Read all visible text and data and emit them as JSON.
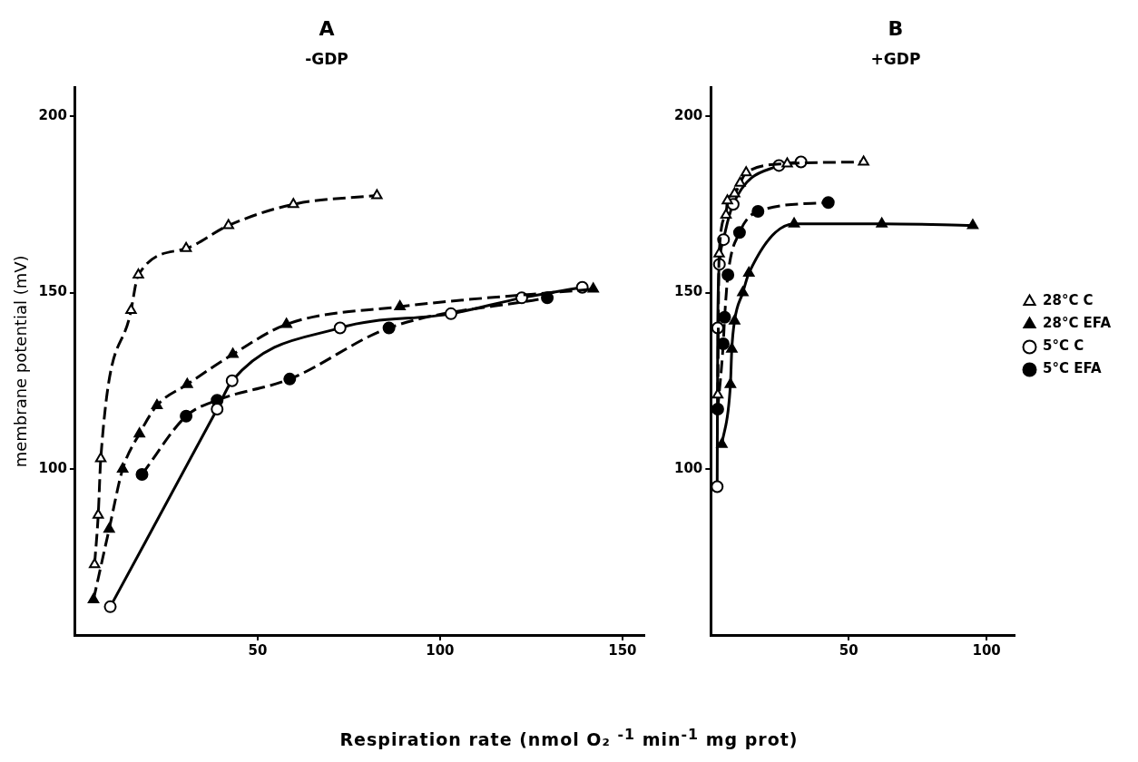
{
  "chart_data": [
    {
      "type": "line",
      "title": "A",
      "subtitle": "-GDP",
      "ylabel": "membrane potential (mV)",
      "xlabel": "Respiration rate      (nmol O₂ $^{-1}$ min$^{-1}$ mg prot)",
      "xlim": [
        0,
        156
      ],
      "ylim": [
        53,
        208
      ],
      "xticks": [
        50,
        100,
        150
      ],
      "yticks": [
        100,
        150,
        200
      ],
      "grid": false,
      "legend": false,
      "series": [
        {
          "color": "#000000",
          "colors": [
            "#ffffff",
            "#ffffff",
            "#ffffff",
            "#ffffff",
            "#ffffff",
            "#ffffff",
            "#ffffff",
            "#ffffff",
            "#ffffff"
          ],
          "marker": "triangle",
          "line_style": "dashed",
          "x": [
            5.3,
            6.3,
            7.0,
            15.3,
            17.3,
            30.4,
            42,
            59.8,
            82.7
          ],
          "values": [
            73,
            87,
            103,
            145,
            155,
            162.5,
            169,
            175,
            177.5
          ]
        },
        {
          "color": "#000000",
          "colors": [
            "#000000",
            "#000000",
            "#000000",
            "#000000",
            "#000000",
            "#000000",
            "#000000",
            "#000000",
            "#000000",
            "#000000"
          ],
          "marker": "triangle",
          "line_style": "dashed",
          "x": [
            5.0,
            9.3,
            13,
            17.6,
            22.4,
            30.7,
            43.2,
            57.9,
            89,
            142
          ],
          "values": [
            63,
            83,
            100,
            110,
            118,
            124,
            132.5,
            141,
            146,
            151
          ]
        },
        {
          "color": "#000000",
          "colors": [
            "#ffffff",
            "#ffffff",
            "#ffffff",
            "#ffffff",
            "#ffffff",
            "#ffffff",
            "#ffffff"
          ],
          "marker": "circle",
          "line_style": "solid",
          "x": [
            9.6,
            38.9,
            43,
            72.6,
            103,
            122.4,
            139
          ],
          "values": [
            61,
            117,
            125,
            140,
            144,
            148.5,
            151.5
          ]
        },
        {
          "color": "#000000",
          "colors": [
            "#000000",
            "#000000",
            "#000000",
            "#000000",
            "#000000",
            "#000000",
            "#000000"
          ],
          "marker": "circle",
          "line_style": "dashed",
          "x": [
            18.3,
            30.4,
            38.9,
            58.8,
            86,
            104,
            129.4
          ],
          "values": [
            98.5,
            115,
            119.5,
            125.5,
            140,
            null,
            148.5
          ]
        }
      ]
    },
    {
      "type": "line",
      "title": "B",
      "subtitle": "+GDP",
      "xlim": [
        0,
        110
      ],
      "ylim": [
        53,
        208
      ],
      "xticks": [
        50,
        100
      ],
      "yticks": [
        100,
        150,
        200
      ],
      "grid": false,
      "legend": "right",
      "series": [
        {
          "name": "28°C C",
          "color": "#000000",
          "colors": [
            "#ffffff",
            "#ffffff",
            "#ffffff",
            "#ffffff",
            "#ffffff",
            "#ffffff",
            "#ffffff",
            "#ffffff",
            "#ffffff"
          ],
          "marker": "triangle",
          "line_style": "dashed",
          "x": [
            2.5,
            3.0,
            5.5,
            6.0,
            8.6,
            10.6,
            12.8,
            27.7,
            55.4
          ],
          "values": [
            121,
            161,
            172,
            176,
            178,
            181,
            184,
            186.5,
            187
          ]
        },
        {
          "name": "28°C EFA",
          "color": "#000000",
          "colors": [
            "#000000",
            "#000000",
            "#000000",
            "#000000",
            "#000000",
            "#000000",
            "#000000",
            "#000000",
            "#000000"
          ],
          "marker": "triangle",
          "line_style": "solid",
          "x": [
            4.0,
            7.1,
            7.6,
            8.6,
            11.6,
            13.8,
            30.2,
            62,
            95
          ],
          "values": [
            107,
            124,
            134,
            142,
            150,
            155.5,
            169.5,
            169.5,
            169
          ]
        },
        {
          "name": "5°C C",
          "color": "#000000",
          "colors": [
            "#ffffff",
            "#ffffff",
            "#ffffff",
            "#ffffff",
            "#ffffff",
            "#ffffff",
            "#ffffff"
          ],
          "marker": "circle",
          "line_style": "solid",
          "x": [
            2.3,
            2.5,
            3.1,
            4.6,
            8.1,
            24.7,
            32.7
          ],
          "values": [
            95,
            140,
            158,
            165,
            175,
            186,
            187
          ]
        },
        {
          "name": "5°C EFA",
          "color": "#000000",
          "colors": [
            "#000000",
            "#000000",
            "#000000",
            "#000000",
            "#000000",
            "#000000",
            "#000000"
          ],
          "marker": "circle",
          "line_style": "dashed",
          "x": [
            2.5,
            4.5,
            5.0,
            6.2,
            10.4,
            17.1,
            42.6
          ],
          "values": [
            117,
            135.5,
            143,
            155,
            167,
            173,
            175.5
          ]
        }
      ]
    }
  ]
}
